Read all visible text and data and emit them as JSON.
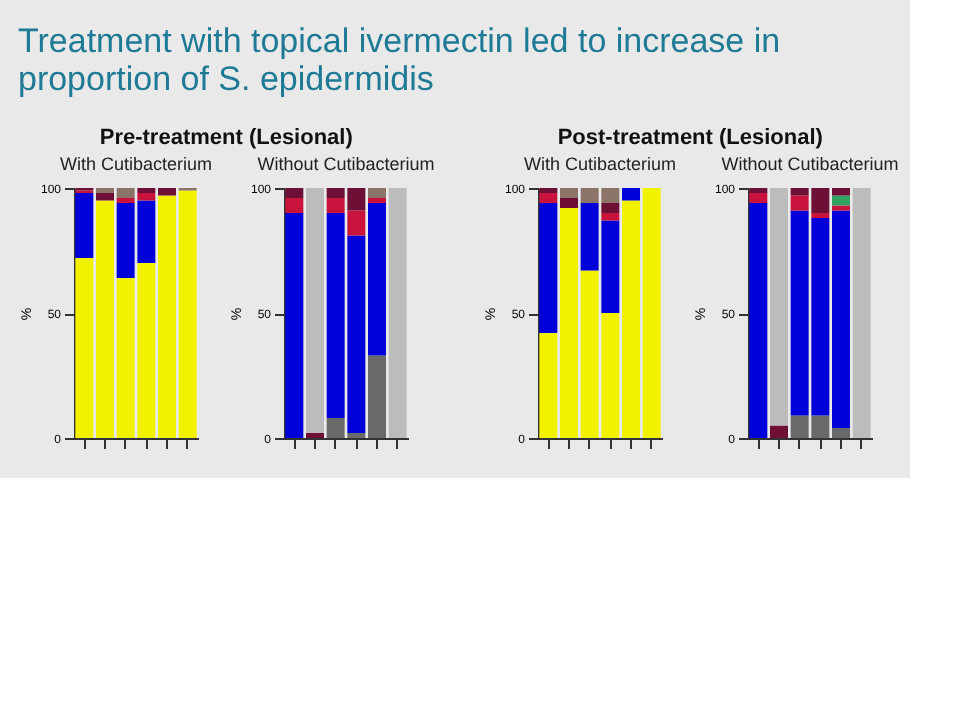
{
  "chart_data": [
    {
      "type": "other",
      "title": "Treatment with topical ivermectin led to increase in proportion of S. epidermidis"
    },
    {
      "type": "bar",
      "title": "Pre-treatment (Lesional)",
      "subtitle": "With Cutibacterium",
      "ylabel": "%",
      "stacked": true,
      "ylim": [
        0,
        100
      ],
      "yticks": [
        0,
        50,
        100
      ],
      "categories": [
        null,
        null,
        null,
        null,
        null,
        null
      ],
      "series": [
        {
          "color": "#f2f200",
          "values": [
            72,
            95,
            64,
            70,
            97,
            99
          ]
        },
        {
          "color": "#6a6a6a",
          "values": [
            0,
            0,
            0,
            0,
            0,
            0
          ]
        },
        {
          "color": "#0000d8",
          "values": [
            26,
            0,
            30,
            25,
            0,
            0
          ]
        },
        {
          "color": "#c8143c",
          "values": [
            1,
            0,
            2,
            3,
            0,
            0
          ]
        },
        {
          "color": "#32a060",
          "values": [
            0,
            0,
            0,
            0,
            0,
            0
          ]
        },
        {
          "color": "#6e1036",
          "values": [
            1,
            3,
            0,
            2,
            3,
            0
          ]
        },
        {
          "color": "#8c7468",
          "values": [
            0,
            2,
            4,
            0,
            0,
            1
          ]
        },
        {
          "color": "#bcbcbc",
          "values": [
            0,
            0,
            0,
            0,
            0,
            0
          ]
        }
      ]
    },
    {
      "type": "bar",
      "subtitle": "Without Cutibacterium",
      "ylabel": "%",
      "stacked": true,
      "ylim": [
        0,
        100
      ],
      "yticks": [
        0,
        50,
        100
      ],
      "categories": [
        null,
        null,
        null,
        null,
        null,
        null
      ],
      "series": [
        {
          "color": "#f2f200",
          "values": [
            0,
            0,
            0,
            0,
            0,
            0
          ]
        },
        {
          "color": "#6a6a6a",
          "values": [
            0,
            0,
            8,
            2,
            33,
            0
          ]
        },
        {
          "color": "#0000d8",
          "values": [
            90,
            0,
            82,
            79,
            61,
            0
          ]
        },
        {
          "color": "#c8143c",
          "values": [
            6,
            0,
            6,
            10,
            2,
            0
          ]
        },
        {
          "color": "#32a060",
          "values": [
            0,
            0,
            0,
            0,
            0,
            0
          ]
        },
        {
          "color": "#6e1036",
          "values": [
            4,
            2,
            4,
            9,
            0,
            0
          ]
        },
        {
          "color": "#8c7468",
          "values": [
            0,
            0,
            0,
            0,
            4,
            0
          ]
        },
        {
          "color": "#bcbcbc",
          "values": [
            0,
            98,
            0,
            0,
            0,
            100
          ]
        }
      ]
    },
    {
      "type": "bar",
      "title": "Post-treatment (Lesional)",
      "subtitle": "With Cutibacterium",
      "ylabel": "%",
      "stacked": true,
      "ylim": [
        0,
        100
      ],
      "yticks": [
        0,
        50,
        100
      ],
      "categories": [
        null,
        null,
        null,
        null,
        null,
        null
      ],
      "series": [
        {
          "color": "#f2f200",
          "values": [
            42,
            92,
            67,
            50,
            95,
            100
          ]
        },
        {
          "color": "#6a6a6a",
          "values": [
            0,
            0,
            0,
            0,
            0,
            0
          ]
        },
        {
          "color": "#0000d8",
          "values": [
            52,
            0,
            27,
            37,
            5,
            0
          ]
        },
        {
          "color": "#c8143c",
          "values": [
            4,
            0,
            0,
            3,
            0,
            0
          ]
        },
        {
          "color": "#32a060",
          "values": [
            0,
            0,
            0,
            0,
            0,
            0
          ]
        },
        {
          "color": "#6e1036",
          "values": [
            2,
            4,
            0,
            4,
            0,
            0
          ]
        },
        {
          "color": "#8c7468",
          "values": [
            0,
            4,
            6,
            6,
            0,
            0
          ]
        },
        {
          "color": "#bcbcbc",
          "values": [
            0,
            0,
            0,
            0,
            0,
            0
          ]
        }
      ]
    },
    {
      "type": "bar",
      "subtitle": "Without Cutibacterium",
      "ylabel": "%",
      "stacked": true,
      "ylim": [
        0,
        100
      ],
      "yticks": [
        0,
        50,
        100
      ],
      "categories": [
        null,
        null,
        null,
        null,
        null,
        null
      ],
      "series": [
        {
          "color": "#f2f200",
          "values": [
            0,
            0,
            0,
            0,
            0,
            0
          ]
        },
        {
          "color": "#6a6a6a",
          "values": [
            0,
            0,
            9,
            9,
            4,
            0
          ]
        },
        {
          "color": "#0000d8",
          "values": [
            94,
            0,
            82,
            79,
            87,
            0
          ]
        },
        {
          "color": "#c8143c",
          "values": [
            4,
            0,
            6,
            2,
            2,
            0
          ]
        },
        {
          "color": "#32a060",
          "values": [
            0,
            0,
            0,
            0,
            4,
            0
          ]
        },
        {
          "color": "#6e1036",
          "values": [
            2,
            5,
            3,
            10,
            3,
            0
          ]
        },
        {
          "color": "#8c7468",
          "values": [
            0,
            0,
            0,
            0,
            0,
            0
          ]
        },
        {
          "color": "#bcbcbc",
          "values": [
            0,
            95,
            0,
            0,
            0,
            100
          ]
        }
      ]
    }
  ]
}
